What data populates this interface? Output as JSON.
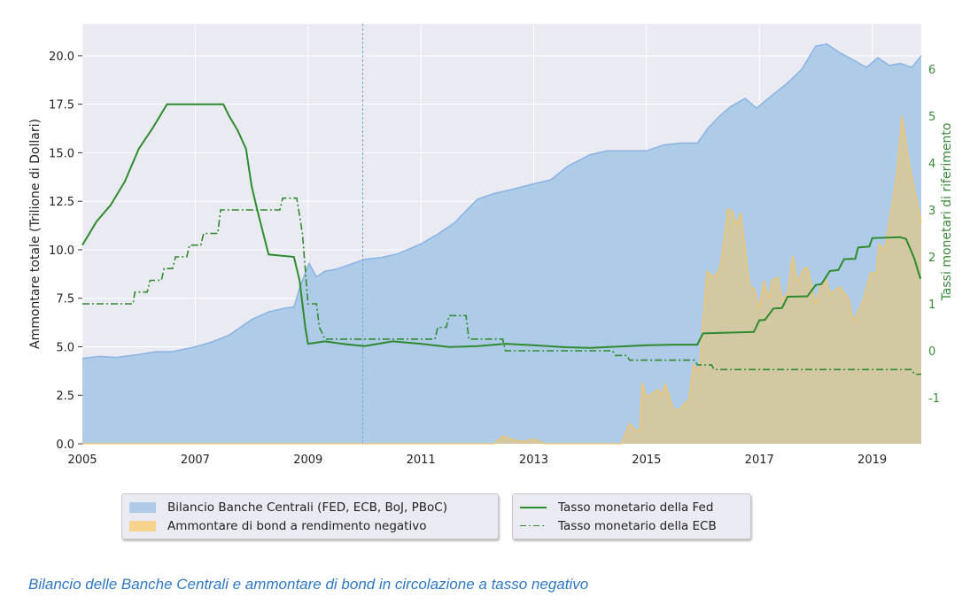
{
  "chart_data": {
    "type": "area",
    "title": "",
    "xlabel": "",
    "ylabel": "Ammontare totale (Trilione di Dollari)",
    "ylabel_right": "Tassi monetari di riferimento",
    "xlim": [
      2005,
      2019.87
    ],
    "ylim": [
      0,
      21.64
    ],
    "ylim_right": [
      -1.98,
      6.96
    ],
    "x_ticks": [
      "2005",
      "2007",
      "2009",
      "2011",
      "2013",
      "2015",
      "2017",
      "2019"
    ],
    "x_tick_values": [
      2005,
      2007,
      2009,
      2011,
      2013,
      2015,
      2017,
      2019
    ],
    "y_ticks": [
      "0.0",
      "2.5",
      "5.0",
      "7.5",
      "10.0",
      "12.5",
      "15.0",
      "17.5",
      "20.0"
    ],
    "y_tick_values": [
      0,
      2.5,
      5,
      7.5,
      10,
      12.5,
      15,
      17.5,
      20
    ],
    "y_right_ticks": [
      "-1",
      "0",
      "1",
      "2",
      "3",
      "4",
      "5",
      "6"
    ],
    "y_right_tick_values": [
      -1,
      0,
      1,
      2,
      3,
      4,
      5,
      6
    ],
    "grid": true,
    "marker_line_x": 2009.97,
    "colors": {
      "background": "#eaeaf2",
      "balance": "#aecbe8",
      "balance_line": "#8ab4e3",
      "negbond": "#f2c66b",
      "fed": "#2e8b2e",
      "ecb": "#2e8b2e",
      "axis_right": "#3a8a3a",
      "marker": "#7fa8cf"
    },
    "series": [
      {
        "name": "Bilancio Banche Centrali (FED, ECB, BoJ, PBoC)",
        "kind": "area",
        "axis": "left",
        "x": [
          2005,
          2005.3,
          2005.6,
          2006,
          2006.3,
          2006.6,
          2007,
          2007.3,
          2007.6,
          2008,
          2008.3,
          2008.6,
          2008.75,
          2008.85,
          2008.95,
          2009.02,
          2009.15,
          2009.3,
          2009.5,
          2009.8,
          2010,
          2010.3,
          2010.6,
          2011,
          2011.3,
          2011.6,
          2012,
          2012.3,
          2012.6,
          2013,
          2013.3,
          2013.6,
          2014,
          2014.3,
          2014.6,
          2015,
          2015.3,
          2015.6,
          2015.9,
          2016.1,
          2016.3,
          2016.5,
          2016.75,
          2016.95,
          2017.2,
          2017.5,
          2017.75,
          2018,
          2018.2,
          2018.4,
          2018.65,
          2018.9,
          2019.1,
          2019.3,
          2019.5,
          2019.7,
          2019.87
        ],
        "y": [
          4.4,
          4.5,
          4.45,
          4.6,
          4.75,
          4.75,
          5.0,
          5.25,
          5.6,
          6.4,
          6.8,
          7.0,
          7.05,
          8.0,
          8.8,
          9.3,
          8.6,
          8.9,
          9.0,
          9.3,
          9.5,
          9.6,
          9.8,
          10.3,
          10.8,
          11.4,
          12.6,
          12.9,
          13.1,
          13.4,
          13.6,
          14.3,
          14.9,
          15.1,
          15.1,
          15.1,
          15.4,
          15.5,
          15.5,
          16.3,
          16.9,
          17.4,
          17.8,
          17.3,
          17.9,
          18.6,
          19.3,
          20.5,
          20.6,
          20.2,
          19.8,
          19.4,
          19.9,
          19.5,
          19.6,
          19.4,
          20.0
        ]
      },
      {
        "name": "Ammontare di bond a rendimento negativo",
        "kind": "area",
        "axis": "left",
        "x": [
          2005,
          2012.3,
          2012.45,
          2012.6,
          2012.8,
          2013.0,
          2013.2,
          2013.4,
          2014.55,
          2014.7,
          2014.8,
          2014.88,
          2014.92,
          2015.0,
          2015.1,
          2015.2,
          2015.27,
          2015.33,
          2015.48,
          2015.56,
          2015.75,
          2015.83,
          2015.93,
          2016.07,
          2016.18,
          2016.28,
          2016.33,
          2016.44,
          2016.52,
          2016.59,
          2016.67,
          2016.83,
          2016.91,
          2016.99,
          2017.08,
          2017.17,
          2017.22,
          2017.33,
          2017.41,
          2017.5,
          2017.59,
          2017.68,
          2017.78,
          2017.85,
          2017.91,
          2018.0,
          2018.09,
          2018.18,
          2018.26,
          2018.42,
          2018.58,
          2018.67,
          2018.84,
          2018.97,
          2019.07,
          2019.12,
          2019.22,
          2019.29,
          2019.39,
          2019.44,
          2019.53,
          2019.65,
          2019.87
        ],
        "y": [
          0,
          0,
          0.4,
          0.25,
          0.1,
          0.25,
          0,
          0,
          0,
          1.05,
          0.7,
          0.7,
          3.15,
          2.4,
          2.6,
          2.8,
          2.5,
          3.1,
          1.8,
          1.7,
          2.3,
          4.1,
          3.7,
          8.9,
          8.6,
          8.9,
          9.6,
          12.1,
          12.0,
          11.3,
          11.9,
          8.1,
          8.0,
          7.0,
          8.4,
          7.5,
          8.4,
          8.6,
          7.4,
          7.8,
          9.7,
          8.3,
          9.0,
          9.1,
          8.4,
          7.2,
          8.2,
          8.5,
          7.7,
          8.1,
          7.5,
          6.3,
          7.4,
          8.8,
          8.8,
          10.3,
          10.0,
          11.2,
          13.0,
          14.0,
          16.9,
          14.5,
          11.4
        ]
      },
      {
        "name": "Tasso monetario della Fed",
        "kind": "line",
        "axis": "right",
        "x": [
          2005,
          2005.25,
          2005.5,
          2005.75,
          2006,
          2006.25,
          2006.5,
          2007,
          2007.5,
          2007.6,
          2007.75,
          2007.9,
          2008,
          2008.1,
          2008.3,
          2008.75,
          2008.85,
          2008.95,
          2009.0,
          2009.3,
          2009.6,
          2010,
          2010.5,
          2011,
          2011.5,
          2012,
          2012.5,
          2013,
          2013.5,
          2014,
          2014.5,
          2015,
          2015.5,
          2015.9,
          2016.0,
          2016.9,
          2017.0,
          2017.1,
          2017.25,
          2017.4,
          2017.5,
          2017.85,
          2018.0,
          2018.1,
          2018.25,
          2018.4,
          2018.5,
          2018.7,
          2018.75,
          2018.95,
          2019.0,
          2019.5,
          2019.6,
          2019.7,
          2019.75,
          2019.85,
          2019.87
        ],
        "y": [
          2.25,
          2.75,
          3.1,
          3.6,
          4.3,
          4.75,
          5.25,
          5.25,
          5.25,
          5.0,
          4.7,
          4.3,
          3.5,
          3.0,
          2.05,
          2.0,
          1.5,
          0.5,
          0.15,
          0.2,
          0.15,
          0.1,
          0.2,
          0.15,
          0.08,
          0.1,
          0.15,
          0.12,
          0.08,
          0.06,
          0.09,
          0.12,
          0.13,
          0.13,
          0.37,
          0.4,
          0.65,
          0.66,
          0.9,
          0.91,
          1.15,
          1.16,
          1.4,
          1.42,
          1.7,
          1.72,
          1.95,
          1.96,
          2.2,
          2.22,
          2.4,
          2.42,
          2.38,
          2.1,
          1.95,
          1.55,
          1.55
        ]
      },
      {
        "name": "Tasso monetario della ECB",
        "kind": "line",
        "axis": "right",
        "dash": "dashdot",
        "x": [
          2005,
          2005.9,
          2005.93,
          2006.15,
          2006.2,
          2006.4,
          2006.45,
          2006.6,
          2006.65,
          2006.85,
          2006.9,
          2007.1,
          2007.15,
          2007.4,
          2007.45,
          2008.5,
          2008.55,
          2008.8,
          2008.9,
          2009.0,
          2009.15,
          2009.2,
          2009.3,
          2011.25,
          2011.3,
          2011.45,
          2011.5,
          2011.8,
          2011.85,
          2012.45,
          2012.5,
          2014.4,
          2014.45,
          2014.65,
          2014.7,
          2015.85,
          2015.9,
          2016.15,
          2016.2,
          2019.7,
          2019.75,
          2019.87
        ],
        "y": [
          1.0,
          1.0,
          1.25,
          1.25,
          1.5,
          1.5,
          1.75,
          1.75,
          2.0,
          2.0,
          2.25,
          2.25,
          2.5,
          2.5,
          3.0,
          3.0,
          3.25,
          3.25,
          2.5,
          1.0,
          1.0,
          0.5,
          0.25,
          0.25,
          0.5,
          0.5,
          0.75,
          0.75,
          0.25,
          0.25,
          0.0,
          0.0,
          -0.1,
          -0.1,
          -0.2,
          -0.2,
          -0.3,
          -0.3,
          -0.4,
          -0.4,
          -0.5,
          -0.5
        ]
      }
    ]
  },
  "legend": {
    "items": [
      {
        "label": "Bilancio Banche Centrali (FED, ECB, BoJ, PBoC)"
      },
      {
        "label": "Ammontare di bond a rendimento negativo"
      },
      {
        "label": "Tasso monetario della Fed"
      },
      {
        "label": "Tasso monetario della ECB"
      }
    ]
  },
  "caption": "Bilancio delle Banche Centrali e ammontare di bond in circolazione a tasso negativo"
}
